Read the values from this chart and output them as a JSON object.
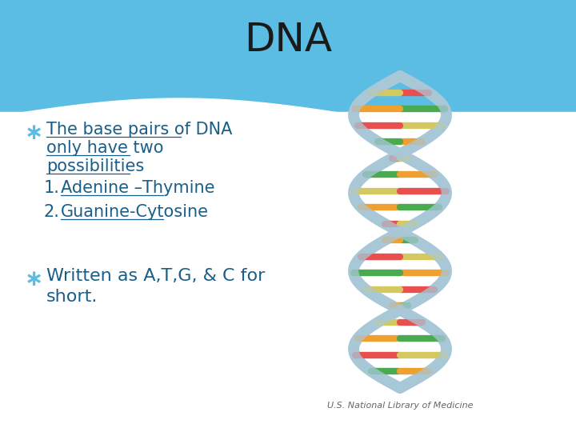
{
  "title": "DNA",
  "title_color": "#1a1a1a",
  "title_fontsize": 36,
  "background_color": "#ffffff",
  "bullet_color": "#1a5f8a",
  "bullet_symbol": "∗",
  "bullet1_lines": [
    "The base pairs of DNA",
    "only have two",
    "possibilities"
  ],
  "item1_text": "Adenine –Thymine",
  "item2_text": "Guanine-Cytosine",
  "bullet2_lines": [
    "Written as A,T,G, & C for",
    "short."
  ],
  "credit_text": "U.S. National Library of Medicine",
  "text_fontsize": 15,
  "credit_fontsize": 8,
  "header_blue": "#5bbde4",
  "dna_backbone_color": "#a8c8d8",
  "pair_colors": [
    "#d4c860",
    "#4aaa50",
    "#e85050",
    "#f0a030"
  ]
}
